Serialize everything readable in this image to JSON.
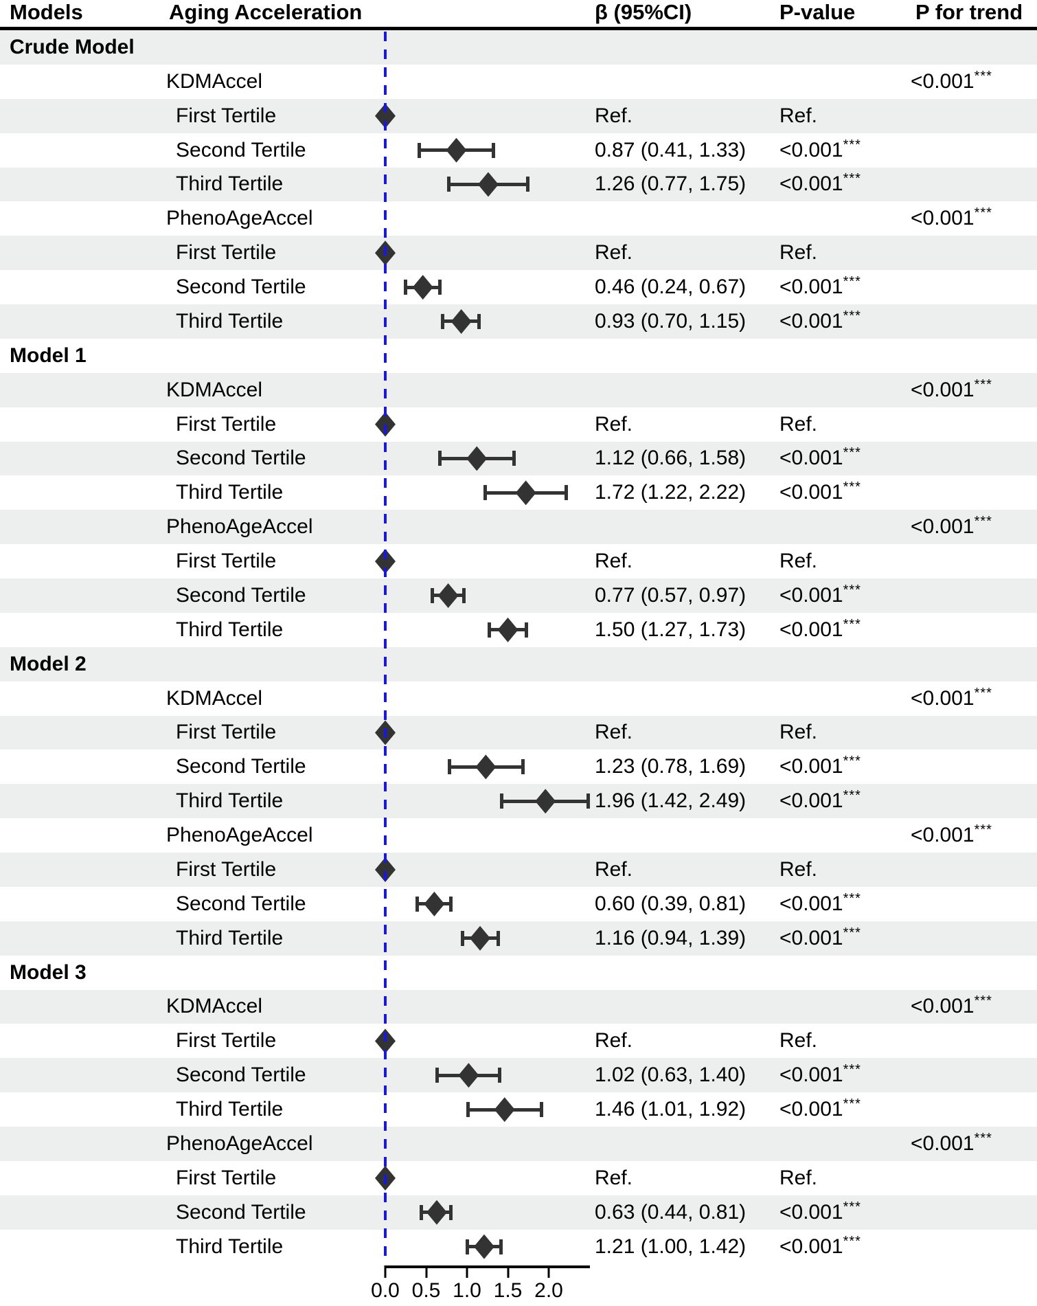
{
  "header": {
    "models": "Models",
    "aging_acceleration": "Aging Acceleration",
    "beta_ci": "β (95%CI)",
    "p_value": "P-value",
    "p_for_trend": "P for trend"
  },
  "axis": {
    "ticks": [
      {
        "label": "0.0",
        "value": 0.0
      },
      {
        "label": "0.5",
        "value": 0.5
      },
      {
        "label": "1.0",
        "value": 1.0
      },
      {
        "label": "1.5",
        "value": 1.5
      },
      {
        "label": "2.0",
        "value": 2.0
      }
    ],
    "line_start_value": 0.0,
    "line_end_value": 2.5,
    "reference_line_value": 0.0
  },
  "colors": {
    "stripe": "#edefee",
    "marker": "#333333",
    "reference_line": "#1717e6",
    "header_rule": "#000000",
    "text": "#000000"
  },
  "chart_data": {
    "type": "forest",
    "title": "",
    "xlabel": "",
    "xlim": [
      0,
      2.5
    ],
    "x_ticks": [
      0.0,
      0.5,
      1.0,
      1.5,
      2.0
    ],
    "reference_value": 0,
    "grid": false,
    "groups": [
      {
        "model": "Crude Model",
        "measures": [
          {
            "name": "KDMAccel",
            "p_for_trend": "<0.001",
            "p_for_trend_stars": "***",
            "tertiles": [
              {
                "label": "First Tertile",
                "is_reference": true,
                "estimate": 0,
                "beta_display": "Ref.",
                "p_display": "Ref.",
                "p_stars": ""
              },
              {
                "label": "Second Tertile",
                "is_reference": false,
                "estimate": 0.87,
                "ci_low": 0.41,
                "ci_high": 1.33,
                "beta_display": "0.87 (0.41, 1.33)",
                "p_display": "<0.001",
                "p_stars": "***"
              },
              {
                "label": "Third Tertile",
                "is_reference": false,
                "estimate": 1.26,
                "ci_low": 0.77,
                "ci_high": 1.75,
                "beta_display": "1.26 (0.77, 1.75)",
                "p_display": "<0.001",
                "p_stars": "***"
              }
            ]
          },
          {
            "name": "PhenoAgeAccel",
            "p_for_trend": "<0.001",
            "p_for_trend_stars": "***",
            "tertiles": [
              {
                "label": "First Tertile",
                "is_reference": true,
                "estimate": 0,
                "beta_display": "Ref.",
                "p_display": "Ref.",
                "p_stars": ""
              },
              {
                "label": "Second Tertile",
                "is_reference": false,
                "estimate": 0.46,
                "ci_low": 0.24,
                "ci_high": 0.67,
                "beta_display": "0.46 (0.24, 0.67)",
                "p_display": "<0.001",
                "p_stars": "***"
              },
              {
                "label": "Third Tertile",
                "is_reference": false,
                "estimate": 0.93,
                "ci_low": 0.7,
                "ci_high": 1.15,
                "beta_display": "0.93 (0.70, 1.15)",
                "p_display": "<0.001",
                "p_stars": "***"
              }
            ]
          }
        ]
      },
      {
        "model": "Model 1",
        "measures": [
          {
            "name": "KDMAccel",
            "p_for_trend": "<0.001",
            "p_for_trend_stars": "***",
            "tertiles": [
              {
                "label": "First Tertile",
                "is_reference": true,
                "estimate": 0,
                "beta_display": "Ref.",
                "p_display": "Ref.",
                "p_stars": ""
              },
              {
                "label": "Second Tertile",
                "is_reference": false,
                "estimate": 1.12,
                "ci_low": 0.66,
                "ci_high": 1.58,
                "beta_display": "1.12 (0.66, 1.58)",
                "p_display": "<0.001",
                "p_stars": "***"
              },
              {
                "label": "Third Tertile",
                "is_reference": false,
                "estimate": 1.72,
                "ci_low": 1.22,
                "ci_high": 2.22,
                "beta_display": "1.72 (1.22, 2.22)",
                "p_display": "<0.001",
                "p_stars": "***"
              }
            ]
          },
          {
            "name": "PhenoAgeAccel",
            "p_for_trend": "<0.001",
            "p_for_trend_stars": "***",
            "tertiles": [
              {
                "label": "First Tertile",
                "is_reference": true,
                "estimate": 0,
                "beta_display": "Ref.",
                "p_display": "Ref.",
                "p_stars": ""
              },
              {
                "label": "Second Tertile",
                "is_reference": false,
                "estimate": 0.77,
                "ci_low": 0.57,
                "ci_high": 0.97,
                "beta_display": "0.77 (0.57, 0.97)",
                "p_display": "<0.001",
                "p_stars": "***"
              },
              {
                "label": "Third Tertile",
                "is_reference": false,
                "estimate": 1.5,
                "ci_low": 1.27,
                "ci_high": 1.73,
                "beta_display": "1.50 (1.27, 1.73)",
                "p_display": "<0.001",
                "p_stars": "***"
              }
            ]
          }
        ]
      },
      {
        "model": "Model 2",
        "measures": [
          {
            "name": "KDMAccel",
            "p_for_trend": "<0.001",
            "p_for_trend_stars": "***",
            "tertiles": [
              {
                "label": "First Tertile",
                "is_reference": true,
                "estimate": 0,
                "beta_display": "Ref.",
                "p_display": "Ref.",
                "p_stars": ""
              },
              {
                "label": "Second Tertile",
                "is_reference": false,
                "estimate": 1.23,
                "ci_low": 0.78,
                "ci_high": 1.69,
                "beta_display": "1.23 (0.78, 1.69)",
                "p_display": "<0.001",
                "p_stars": "***"
              },
              {
                "label": "Third Tertile",
                "is_reference": false,
                "estimate": 1.96,
                "ci_low": 1.42,
                "ci_high": 2.49,
                "beta_display": "1.96 (1.42, 2.49)",
                "p_display": "<0.001",
                "p_stars": "***"
              }
            ]
          },
          {
            "name": "PhenoAgeAccel",
            "p_for_trend": "<0.001",
            "p_for_trend_stars": "***",
            "tertiles": [
              {
                "label": "First Tertile",
                "is_reference": true,
                "estimate": 0,
                "beta_display": "Ref.",
                "p_display": "Ref.",
                "p_stars": ""
              },
              {
                "label": "Second Tertile",
                "is_reference": false,
                "estimate": 0.6,
                "ci_low": 0.39,
                "ci_high": 0.81,
                "beta_display": "0.60 (0.39, 0.81)",
                "p_display": "<0.001",
                "p_stars": "***"
              },
              {
                "label": "Third Tertile",
                "is_reference": false,
                "estimate": 1.16,
                "ci_low": 0.94,
                "ci_high": 1.39,
                "beta_display": "1.16 (0.94, 1.39)",
                "p_display": "<0.001",
                "p_stars": "***"
              }
            ]
          }
        ]
      },
      {
        "model": "Model 3",
        "measures": [
          {
            "name": "KDMAccel",
            "p_for_trend": "<0.001",
            "p_for_trend_stars": "***",
            "tertiles": [
              {
                "label": "First Tertile",
                "is_reference": true,
                "estimate": 0,
                "beta_display": "Ref.",
                "p_display": "Ref.",
                "p_stars": ""
              },
              {
                "label": "Second Tertile",
                "is_reference": false,
                "estimate": 1.02,
                "ci_low": 0.63,
                "ci_high": 1.4,
                "beta_display": "1.02 (0.63, 1.40)",
                "p_display": "<0.001",
                "p_stars": "***"
              },
              {
                "label": "Third Tertile",
                "is_reference": false,
                "estimate": 1.46,
                "ci_low": 1.01,
                "ci_high": 1.92,
                "beta_display": "1.46 (1.01, 1.92)",
                "p_display": "<0.001",
                "p_stars": "***"
              }
            ]
          },
          {
            "name": "PhenoAgeAccel",
            "p_for_trend": "<0.001",
            "p_for_trend_stars": "***",
            "tertiles": [
              {
                "label": "First Tertile",
                "is_reference": true,
                "estimate": 0,
                "beta_display": "Ref.",
                "p_display": "Ref.",
                "p_stars": ""
              },
              {
                "label": "Second Tertile",
                "is_reference": false,
                "estimate": 0.63,
                "ci_low": 0.44,
                "ci_high": 0.81,
                "beta_display": "0.63 (0.44, 0.81)",
                "p_display": "<0.001",
                "p_stars": "***"
              },
              {
                "label": "Third Tertile",
                "is_reference": false,
                "estimate": 1.21,
                "ci_low": 1.0,
                "ci_high": 1.42,
                "beta_display": "1.21 (1.00, 1.42)",
                "p_display": "<0.001",
                "p_stars": "***"
              }
            ]
          }
        ]
      }
    ]
  }
}
